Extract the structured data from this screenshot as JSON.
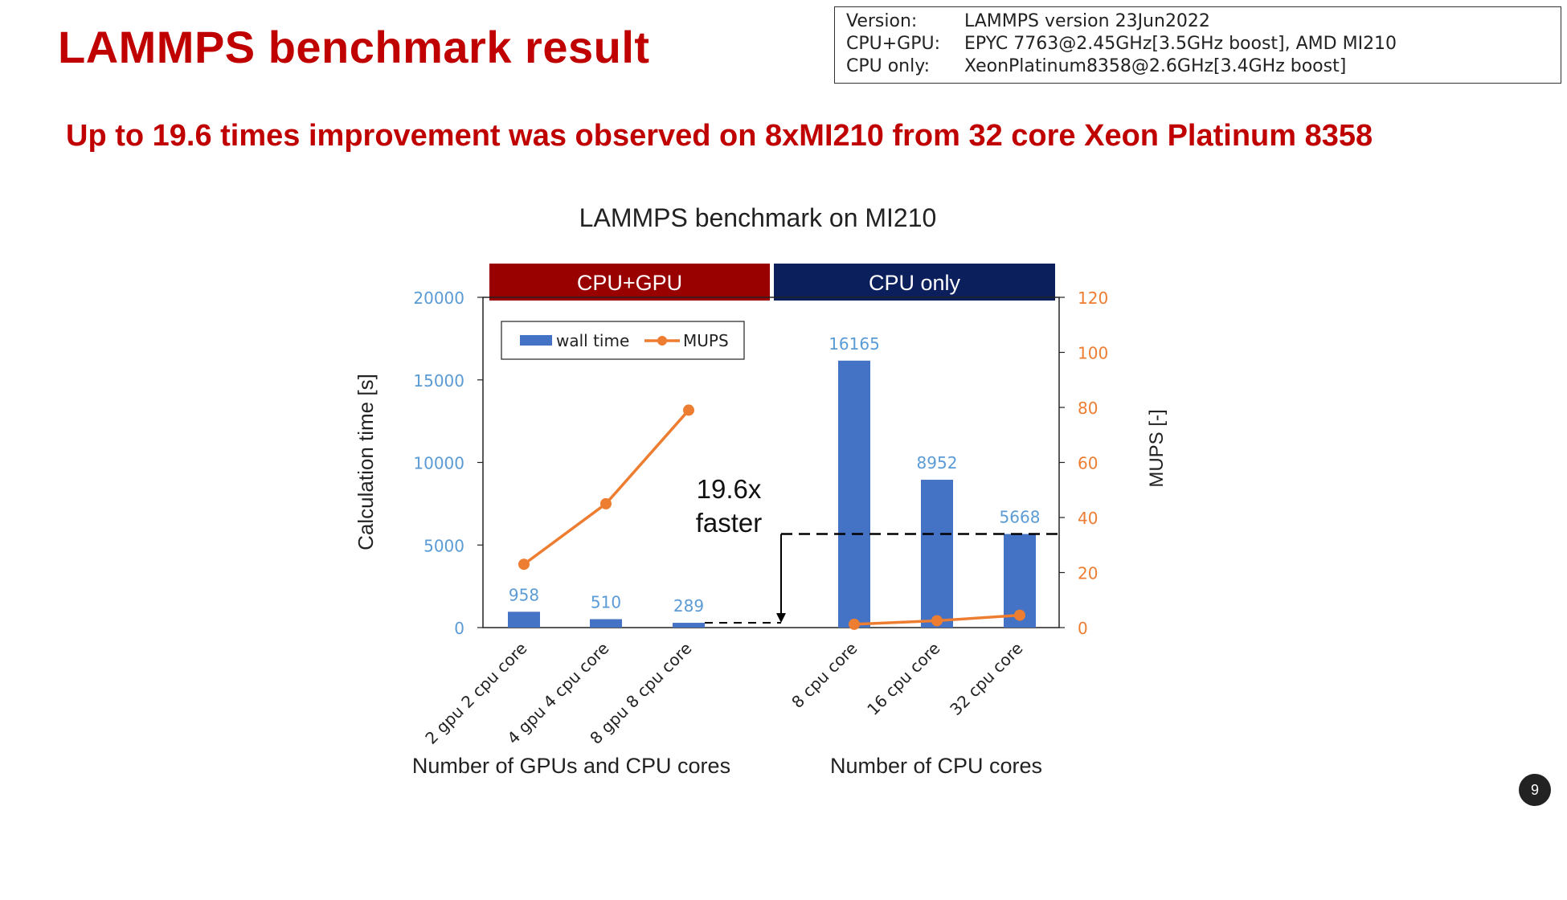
{
  "slide": {
    "title": "LAMMPS benchmark result",
    "subtitle": "Up to 19.6 times improvement was observed on 8xMI210 from 32 core Xeon Platinum 8358",
    "page_number": "9"
  },
  "specs": [
    {
      "key": "Version:",
      "value": "LAMMPS version 23Jun2022"
    },
    {
      "key": "CPU+GPU:",
      "value": "EPYC 7763@2.45GHz[3.5GHz boost], AMD MI210"
    },
    {
      "key": "CPU only:",
      "value": "XeonPlatinum8358@2.6GHz[3.4GHz boost]"
    }
  ],
  "chart_data": {
    "type": "bar",
    "title": "LAMMPS benchmark on MI210",
    "groups": [
      {
        "label": "CPU+GPU",
        "color": "#990000",
        "xlabel": "Number of GPUs and CPU cores"
      },
      {
        "label": "CPU only",
        "color": "#0b1f5c",
        "xlabel": "Number of CPU cores"
      }
    ],
    "categories": [
      "2 gpu 2 cpu core",
      "4 gpu 4 cpu core",
      "8 gpu 8 cpu core",
      "8 cpu core",
      "16 cpu core",
      "32 cpu core"
    ],
    "series": [
      {
        "name": "wall time",
        "type": "bar",
        "axis": "left",
        "color": "#4472c4",
        "values": [
          958,
          510,
          289,
          16165,
          8952,
          5668
        ],
        "labels": [
          "958",
          "510",
          "289",
          "16165",
          "8952",
          "5668"
        ]
      },
      {
        "name": "MUPS",
        "type": "line",
        "axis": "right",
        "color": "#ed7d31",
        "values": [
          23,
          45,
          79,
          null,
          null,
          null
        ]
      },
      {
        "name": "MUPS",
        "type": "line",
        "axis": "right",
        "color": "#ed7d31",
        "values": [
          null,
          null,
          null,
          1.2,
          2.5,
          4.5
        ]
      }
    ],
    "ylabel": "Calculation time [s]",
    "ylim": [
      0,
      20000
    ],
    "yticks": [
      "0",
      "5000",
      "10000",
      "15000",
      "20000"
    ],
    "y2label": "MUPS [-]",
    "y2lim": [
      0,
      120
    ],
    "y2ticks": [
      "0",
      "20",
      "40",
      "60",
      "80",
      "100",
      "120"
    ],
    "legend": {
      "position": "top-left",
      "items": [
        "wall time",
        "MUPS"
      ]
    },
    "annotation": {
      "lines": [
        "19.6x",
        "faster"
      ]
    },
    "grid": false,
    "colors": {
      "left_axis_text": "#5b9bd5",
      "right_axis_text": "#ed7d31"
    }
  }
}
